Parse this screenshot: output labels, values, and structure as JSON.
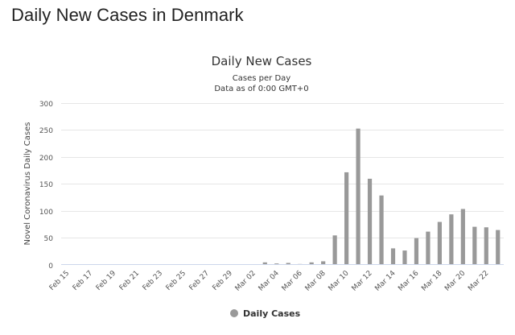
{
  "page": {
    "heading": "Daily New Cases in Denmark"
  },
  "colors": {
    "bar": "#999999",
    "grid": "#e6e6e6",
    "axis": "#ccd6eb"
  },
  "chart_data": {
    "type": "bar",
    "title": "Daily New Cases",
    "subtitle_lines": [
      "Cases per Day",
      "Data as of 0:00 GMT+0"
    ],
    "ylabel": "Novel Coronavirus Daily Cases",
    "xlabel": "",
    "ylim": [
      0,
      300
    ],
    "yticks": [
      0,
      50,
      100,
      150,
      200,
      250,
      300
    ],
    "grid": true,
    "legend_position": "bottom-center",
    "categories": [
      "Feb 15",
      "Feb 16",
      "Feb 17",
      "Feb 18",
      "Feb 19",
      "Feb 20",
      "Feb 21",
      "Feb 22",
      "Feb 23",
      "Feb 24",
      "Feb 25",
      "Feb 26",
      "Feb 27",
      "Feb 28",
      "Feb 29",
      "Mar 01",
      "Mar 02",
      "Mar 03",
      "Mar 04",
      "Mar 05",
      "Mar 06",
      "Mar 07",
      "Mar 08",
      "Mar 09",
      "Mar 10",
      "Mar 11",
      "Mar 12",
      "Mar 13",
      "Mar 14",
      "Mar 15",
      "Mar 16",
      "Mar 17",
      "Mar 18",
      "Mar 19",
      "Mar 20",
      "Mar 21",
      "Mar 22",
      "Mar 23"
    ],
    "x_tick_labels": [
      "Feb 15",
      "Feb 17",
      "Feb 19",
      "Feb 21",
      "Feb 23",
      "Feb 25",
      "Feb 27",
      "Feb 29",
      "Mar 02",
      "Mar 04",
      "Mar 06",
      "Mar 08",
      "Mar 10",
      "Mar 12",
      "Mar 14",
      "Mar 16",
      "Mar 18",
      "Mar 20",
      "Mar 22"
    ],
    "series": [
      {
        "name": "Daily Cases",
        "color": "#999999",
        "values": [
          0,
          0,
          0,
          0,
          0,
          0,
          0,
          0,
          0,
          0,
          0,
          0,
          0,
          0,
          0,
          0,
          0,
          4,
          2,
          3,
          1,
          4,
          6,
          54,
          171,
          252,
          159,
          128,
          30,
          26,
          49,
          61,
          79,
          93,
          103,
          70,
          69,
          64
        ]
      }
    ]
  }
}
